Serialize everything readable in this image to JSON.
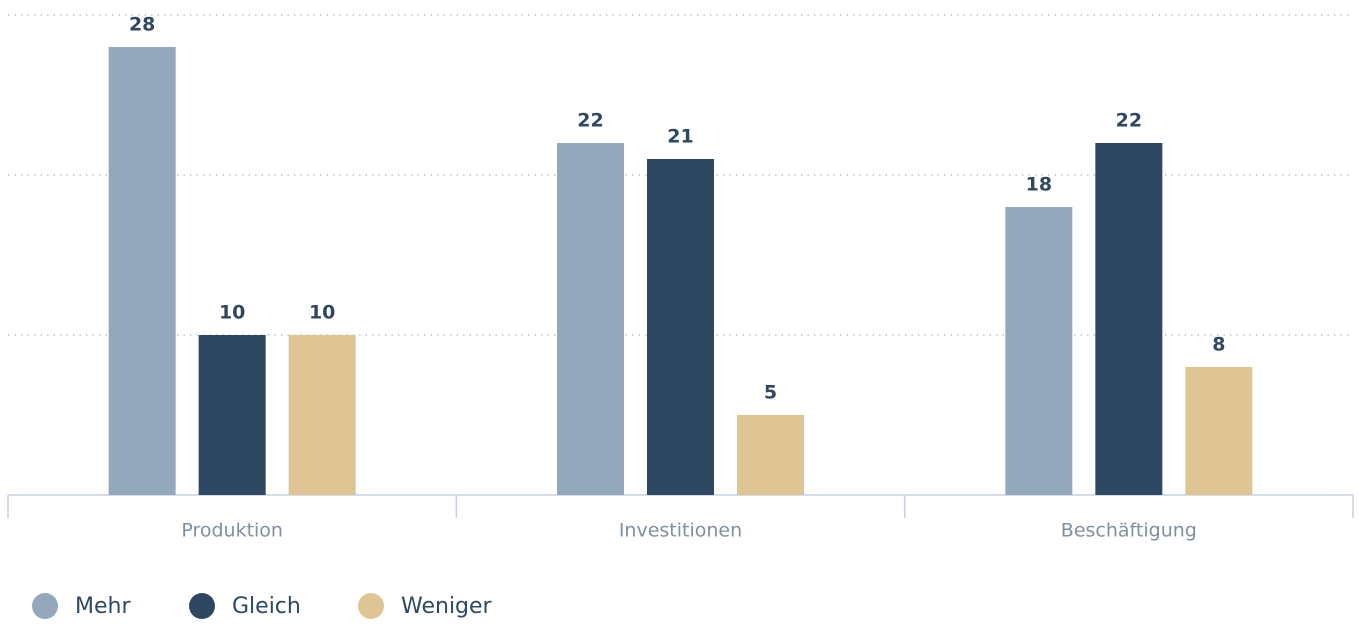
{
  "chart_data": {
    "type": "bar",
    "categories": [
      "Produktion",
      "Investitionen",
      "Beschäftigung"
    ],
    "series": [
      {
        "name": "Mehr",
        "color": "#94a8bc",
        "values": [
          28,
          22,
          18
        ]
      },
      {
        "name": "Gleich",
        "color": "#2e4862",
        "values": [
          10,
          21,
          22
        ]
      },
      {
        "name": "Weniger",
        "color": "#e0c594",
        "values": [
          10,
          5,
          8
        ]
      }
    ],
    "ylim": [
      0,
      30
    ],
    "yticks": [
      10,
      20,
      30
    ],
    "grid": true
  }
}
